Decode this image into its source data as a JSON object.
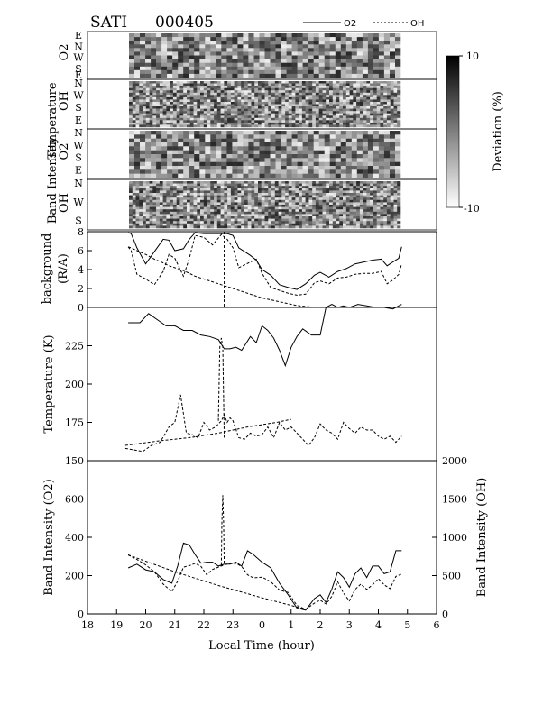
{
  "header": {
    "title": "SATI",
    "date_code": "000405"
  },
  "legend": {
    "o2": "O2",
    "oh": "OH"
  },
  "colorbar": {
    "label": "Deviation (%)",
    "max_label": "10",
    "min_label": "-10"
  },
  "keograms": [
    {
      "name": "temp_o2",
      "top": "Temperature",
      "bottom": "O2",
      "rows": [
        "E",
        "N",
        "W",
        "S",
        "E"
      ]
    },
    {
      "name": "temp_oh",
      "top": "Temperature",
      "bottom": "OH",
      "rows": [
        "N",
        "W",
        "S",
        "E"
      ]
    },
    {
      "name": "int_o2",
      "top": "Band Intensity",
      "bottom": "O2",
      "rows": [
        "N",
        "W",
        "S",
        "E"
      ]
    },
    {
      "name": "int_oh",
      "top": "Band Intensity",
      "bottom": "OH",
      "rows": [
        "N",
        "W",
        "S"
      ]
    }
  ],
  "keogram_labels": {
    "temperature": "Temperature",
    "band_intensity": "Band Intensity",
    "o2": "O2",
    "oh": "OH"
  },
  "xaxis": {
    "label": "Local Time (hour)",
    "ticks": [
      "18",
      "19",
      "20",
      "21",
      "22",
      "23",
      "0",
      "1",
      "2",
      "3",
      "4",
      "5",
      "6"
    ]
  },
  "chart_data": [
    {
      "type": "line",
      "ylabel_line1": "background",
      "ylabel_line2": "(R/A)",
      "ylim": [
        0,
        8
      ],
      "yticks": [
        "0",
        "2",
        "4",
        "6",
        "8"
      ],
      "x": [
        19.4,
        19.5,
        19.7,
        20.0,
        20.3,
        20.6,
        20.8,
        21.0,
        21.3,
        21.5,
        21.7,
        22.0,
        22.3,
        22.6,
        22.8,
        23.0,
        23.2,
        23.4,
        23.6,
        23.8,
        24.0,
        24.3,
        24.6,
        24.9,
        25.2,
        25.5,
        25.8,
        26.0,
        26.3,
        26.6,
        26.9,
        27.2,
        27.5,
        27.8,
        28.1,
        28.3,
        28.5,
        28.7,
        28.8
      ],
      "series": [
        {
          "name": "O2",
          "style": "solid",
          "values": [
            7.9,
            7.8,
            6.3,
            4.6,
            5.9,
            7.2,
            7.1,
            6.0,
            6.2,
            7.2,
            7.9,
            7.8,
            7.8,
            7.8,
            7.8,
            7.6,
            6.3,
            5.9,
            5.5,
            5.0,
            4.0,
            3.4,
            2.4,
            2.1,
            1.9,
            2.5,
            3.4,
            3.7,
            3.2,
            3.8,
            4.1,
            4.6,
            4.8,
            5.0,
            5.1,
            4.4,
            4.8,
            5.2,
            6.4
          ]
        },
        {
          "name": "OH",
          "style": "dashed",
          "values": [
            6.4,
            6.0,
            3.5,
            3.0,
            2.4,
            3.8,
            5.6,
            5.2,
            3.3,
            5.2,
            7.6,
            7.4,
            6.6,
            7.7,
            7.2,
            6.3,
            4.2,
            4.5,
            4.8,
            5.1,
            3.6,
            2.1,
            1.8,
            1.5,
            1.3,
            1.4,
            2.6,
            2.8,
            2.5,
            3.1,
            3.2,
            3.5,
            3.6,
            3.6,
            3.8,
            2.5,
            2.9,
            3.5,
            4.6
          ]
        },
        {
          "name": "OH interpolation",
          "style": "dashed",
          "values": [
            6.4,
            6.3,
            6.0,
            5.6,
            5.1,
            4.7,
            4.4,
            4.2,
            3.9,
            3.6,
            3.3,
            3.0,
            2.7,
            2.4,
            2.2,
            2.0,
            1.8,
            1.6,
            1.4,
            1.2,
            1.0,
            0.8,
            0.6,
            0.4,
            0.2,
            0.1,
            0.0,
            0.0,
            0.0,
            0.0,
            0.0,
            0.0,
            0.0,
            0.0,
            0.0,
            0.0,
            0.0,
            0.0,
            0.0
          ]
        }
      ]
    },
    {
      "type": "line",
      "ylabel": "Temperature (K)",
      "ylim": [
        150,
        250
      ],
      "yticks": [
        "150",
        "175",
        "200",
        "225"
      ],
      "x_o2": [
        19.4,
        19.6,
        19.8,
        20.1,
        20.4,
        20.7,
        21.0,
        21.3,
        21.6,
        21.9,
        22.2,
        22.5,
        22.7,
        22.9,
        23.1,
        23.3,
        23.6,
        23.8,
        24.0,
        24.2,
        24.4,
        24.6,
        24.8,
        25.0,
        25.2,
        25.4,
        25.7,
        26.0,
        26.2,
        26.4,
        26.6,
        26.8,
        27.0,
        27.3,
        27.6,
        27.9,
        28.2,
        28.5,
        28.8
      ],
      "series": [
        {
          "name": "O2",
          "style": "solid",
          "values": [
            240,
            240,
            240,
            246,
            242,
            238,
            238,
            235,
            235,
            232,
            231,
            229,
            223,
            223,
            224,
            222,
            231,
            227,
            238,
            235,
            230,
            222,
            212,
            224,
            231,
            236,
            232,
            232,
            250,
            252,
            250,
            251,
            250,
            252,
            251,
            250,
            250,
            249,
            252
          ]
        },
        {
          "name": "OH",
          "style": "dashed",
          "x": [
            19.3,
            19.6,
            19.9,
            20.2,
            20.5,
            20.8,
            21.0,
            21.2,
            21.4,
            21.6,
            21.8,
            22.0,
            22.2,
            22.4,
            22.6,
            22.7,
            22.8,
            22.9,
            23.0,
            23.2,
            23.4,
            23.6,
            23.8,
            24.0,
            24.2,
            24.4,
            24.6,
            24.8,
            25.0,
            25.2,
            25.4,
            25.6,
            25.8,
            26.0,
            26.2,
            26.4,
            26.6,
            26.8,
            27.0,
            27.2,
            27.4,
            27.6,
            27.8,
            28.0,
            28.2,
            28.4,
            28.6,
            28.8
          ],
          "values": [
            158,
            157,
            156,
            160,
            162,
            172,
            175,
            193,
            168,
            167,
            165,
            175,
            170,
            172,
            176,
            180,
            175,
            178,
            176,
            165,
            164,
            168,
            166,
            167,
            172,
            165,
            175,
            170,
            172,
            168,
            164,
            160,
            165,
            174,
            170,
            168,
            164,
            175,
            171,
            168,
            172,
            170,
            170,
            166,
            164,
            166,
            162,
            166
          ]
        },
        {
          "name": "OH interpolation",
          "style": "dashed",
          "x": [
            19.3,
            20.5,
            21.5,
            22.5,
            23.5,
            24.5,
            25.0
          ],
          "values": [
            160,
            163,
            165,
            168,
            172,
            175,
            177
          ]
        },
        {
          "name": "OH spike",
          "style": "dashed",
          "x": [
            22.5,
            22.55,
            22.6,
            22.65,
            22.7
          ],
          "values": [
            176,
            224,
            230,
            224,
            165
          ]
        }
      ]
    },
    {
      "type": "line",
      "ylabel_left": "Band Intensity (O2)",
      "ylabel_right": "Band Intensity (OH)",
      "ylim_left": [
        0,
        800
      ],
      "ylim_right": [
        0,
        2000
      ],
      "yticks_left": [
        "0",
        "200",
        "400",
        "600"
      ],
      "yticks_right": [
        "0",
        "500",
        "1000",
        "1500",
        "2000"
      ],
      "x": [
        19.4,
        19.7,
        20.0,
        20.3,
        20.6,
        20.9,
        21.1,
        21.3,
        21.5,
        21.7,
        21.9,
        22.1,
        22.3,
        22.5,
        22.7,
        22.9,
        23.1,
        23.3,
        23.5,
        23.7,
        24.0,
        24.3,
        24.6,
        24.9,
        25.2,
        25.5,
        25.8,
        26.0,
        26.2,
        26.4,
        26.6,
        26.8,
        27.0,
        27.2,
        27.4,
        27.6,
        27.8,
        28.0,
        28.2,
        28.4,
        28.6,
        28.8
      ],
      "series": [
        {
          "name": "O2",
          "style": "solid",
          "axis": "left",
          "values": [
            240,
            260,
            230,
            220,
            180,
            160,
            250,
            370,
            360,
            310,
            265,
            270,
            270,
            250,
            260,
            260,
            270,
            250,
            330,
            310,
            270,
            240,
            160,
            100,
            30,
            20,
            80,
            100,
            60,
            130,
            220,
            190,
            140,
            210,
            240,
            190,
            250,
            250,
            210,
            220,
            330,
            330
          ]
        },
        {
          "name": "OH",
          "style": "dashed",
          "axis": "right",
          "values": [
            770,
            710,
            640,
            550,
            390,
            290,
            430,
            610,
            630,
            660,
            620,
            510,
            580,
            610,
            640,
            660,
            660,
            620,
            510,
            470,
            480,
            420,
            310,
            280,
            110,
            60,
            140,
            180,
            130,
            230,
            420,
            270,
            170,
            320,
            390,
            320,
            380,
            460,
            380,
            330,
            490,
            520
          ]
        },
        {
          "name": "OH interpolation",
          "style": "dashed",
          "axis": "right",
          "x": [
            19.4,
            21.0,
            22.5,
            24.0,
            25.5
          ],
          "values": [
            770,
            550,
            370,
            210,
            60
          ]
        },
        {
          "name": "OH spike",
          "style": "dashed",
          "axis": "right",
          "x": [
            22.6,
            22.62,
            22.65,
            22.68,
            22.7
          ],
          "values": [
            640,
            1200,
            1550,
            1200,
            640
          ]
        }
      ]
    }
  ]
}
